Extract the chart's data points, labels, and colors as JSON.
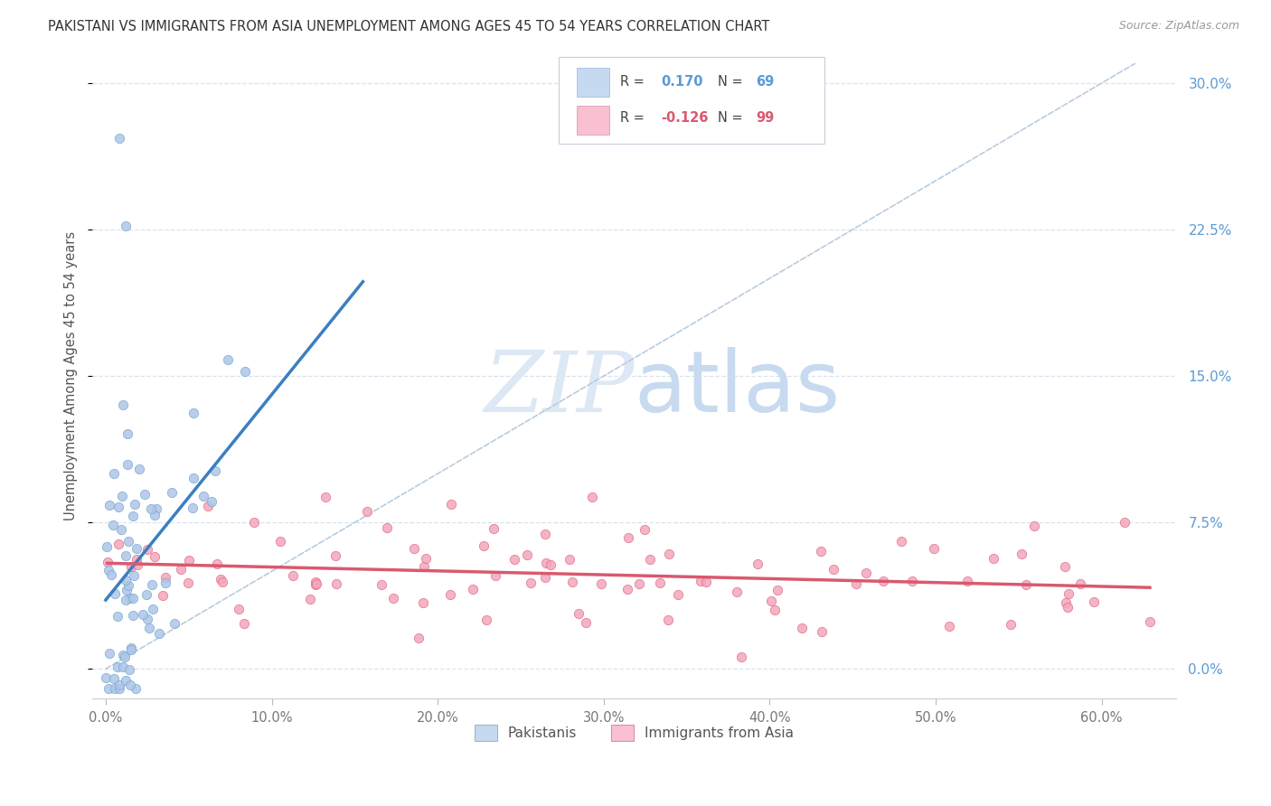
{
  "title": "PAKISTANI VS IMMIGRANTS FROM ASIA UNEMPLOYMENT AMONG AGES 45 TO 54 YEARS CORRELATION CHART",
  "source": "Source: ZipAtlas.com",
  "xlabel_ticks": [
    "0.0%",
    "10.0%",
    "20.0%",
    "30.0%",
    "40.0%",
    "50.0%",
    "60.0%"
  ],
  "xlabel_vals": [
    0.0,
    0.1,
    0.2,
    0.3,
    0.4,
    0.5,
    0.6
  ],
  "ylabel": "Unemployment Among Ages 45 to 54 years",
  "ylabel_ticks": [
    "0.0%",
    "7.5%",
    "15.0%",
    "22.5%",
    "30.0%"
  ],
  "ylabel_vals": [
    0.0,
    0.075,
    0.15,
    0.225,
    0.3
  ],
  "xlim_min": -0.008,
  "xlim_max": 0.645,
  "ylim_min": -0.015,
  "ylim_max": 0.315,
  "pakistani_R": 0.17,
  "pakistani_N": 69,
  "immigrant_R": -0.126,
  "immigrant_N": 99,
  "pakistani_color": "#aec6e8",
  "pakistani_edge_color": "#7aaad0",
  "pakistani_line_color": "#3a7fc1",
  "immigrant_color": "#f4a7b9",
  "immigrant_edge_color": "#e07090",
  "immigrant_line_color": "#d9596e",
  "diagonal_line_color": "#b8cce0",
  "background_color": "#ffffff",
  "grid_color": "#d8e4f0",
  "legend_box_blue": "#c5d9f0",
  "legend_box_pink": "#f8c0d0",
  "watermark_color": "#dde8f5",
  "ytick_color": "#5b9bd5",
  "xtick_color": "#777777",
  "ylabel_color": "#555555",
  "title_color": "#333333",
  "source_color": "#999999"
}
